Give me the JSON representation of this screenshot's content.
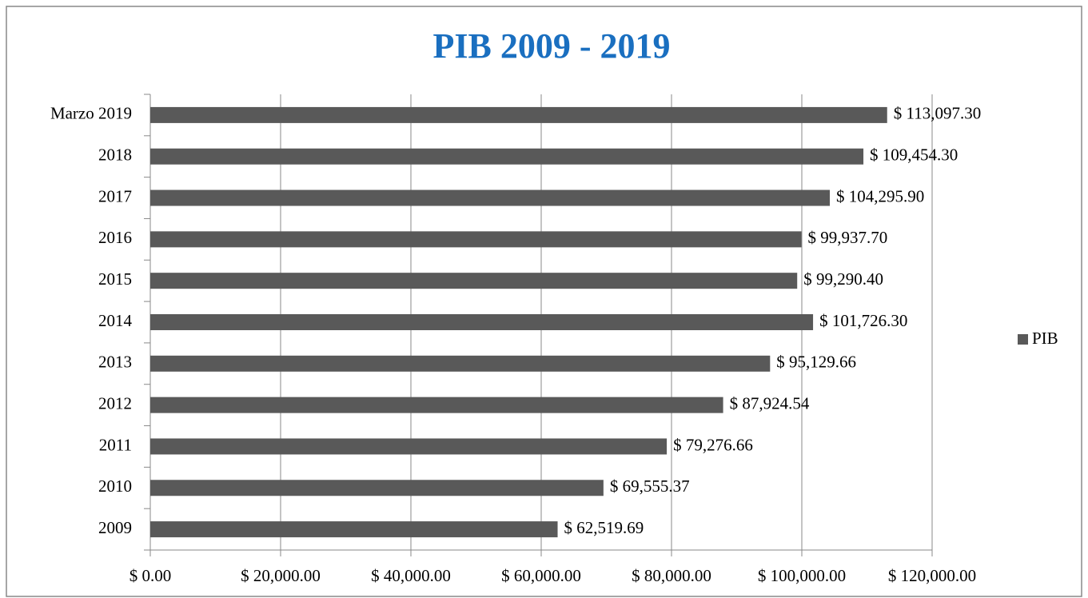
{
  "chart_data": {
    "type": "bar",
    "orientation": "horizontal",
    "title": "PIB 2009 - 2019",
    "categories": [
      "2009",
      "2010",
      "2011",
      "2012",
      "2013",
      "2014",
      "2015",
      "2016",
      "2017",
      "2018",
      "Marzo 2019"
    ],
    "series": [
      {
        "name": "PIB",
        "color": "#595959",
        "values": [
          62519.69,
          69555.37,
          79276.66,
          87924.54,
          95129.66,
          101726.3,
          99290.4,
          99937.7,
          104295.9,
          109454.3,
          113097.3
        ],
        "value_labels": [
          "$ 62,519.69",
          "$ 69,555.37",
          "$ 79,276.66",
          "$ 87,924.54",
          "$ 95,129.66",
          "$ 101,726.30",
          "$ 99,290.40",
          "$ 99,937.70",
          "$ 104,295.90",
          "$ 109,454.30",
          "$ 113,097.30"
        ]
      }
    ],
    "xlim": [
      0,
      120000
    ],
    "xticks": [
      {
        "value": 0,
        "label": "$ 0.00"
      },
      {
        "value": 20000,
        "label": "$ 20,000.00"
      },
      {
        "value": 40000,
        "label": "$ 40,000.00"
      },
      {
        "value": 60000,
        "label": "$ 60,000.00"
      },
      {
        "value": 80000,
        "label": "$ 80,000.00"
      },
      {
        "value": 100000,
        "label": "$ 100,000.00"
      },
      {
        "value": 120000,
        "label": "$ 120,000.00"
      }
    ],
    "grid": true,
    "legend": "right"
  }
}
